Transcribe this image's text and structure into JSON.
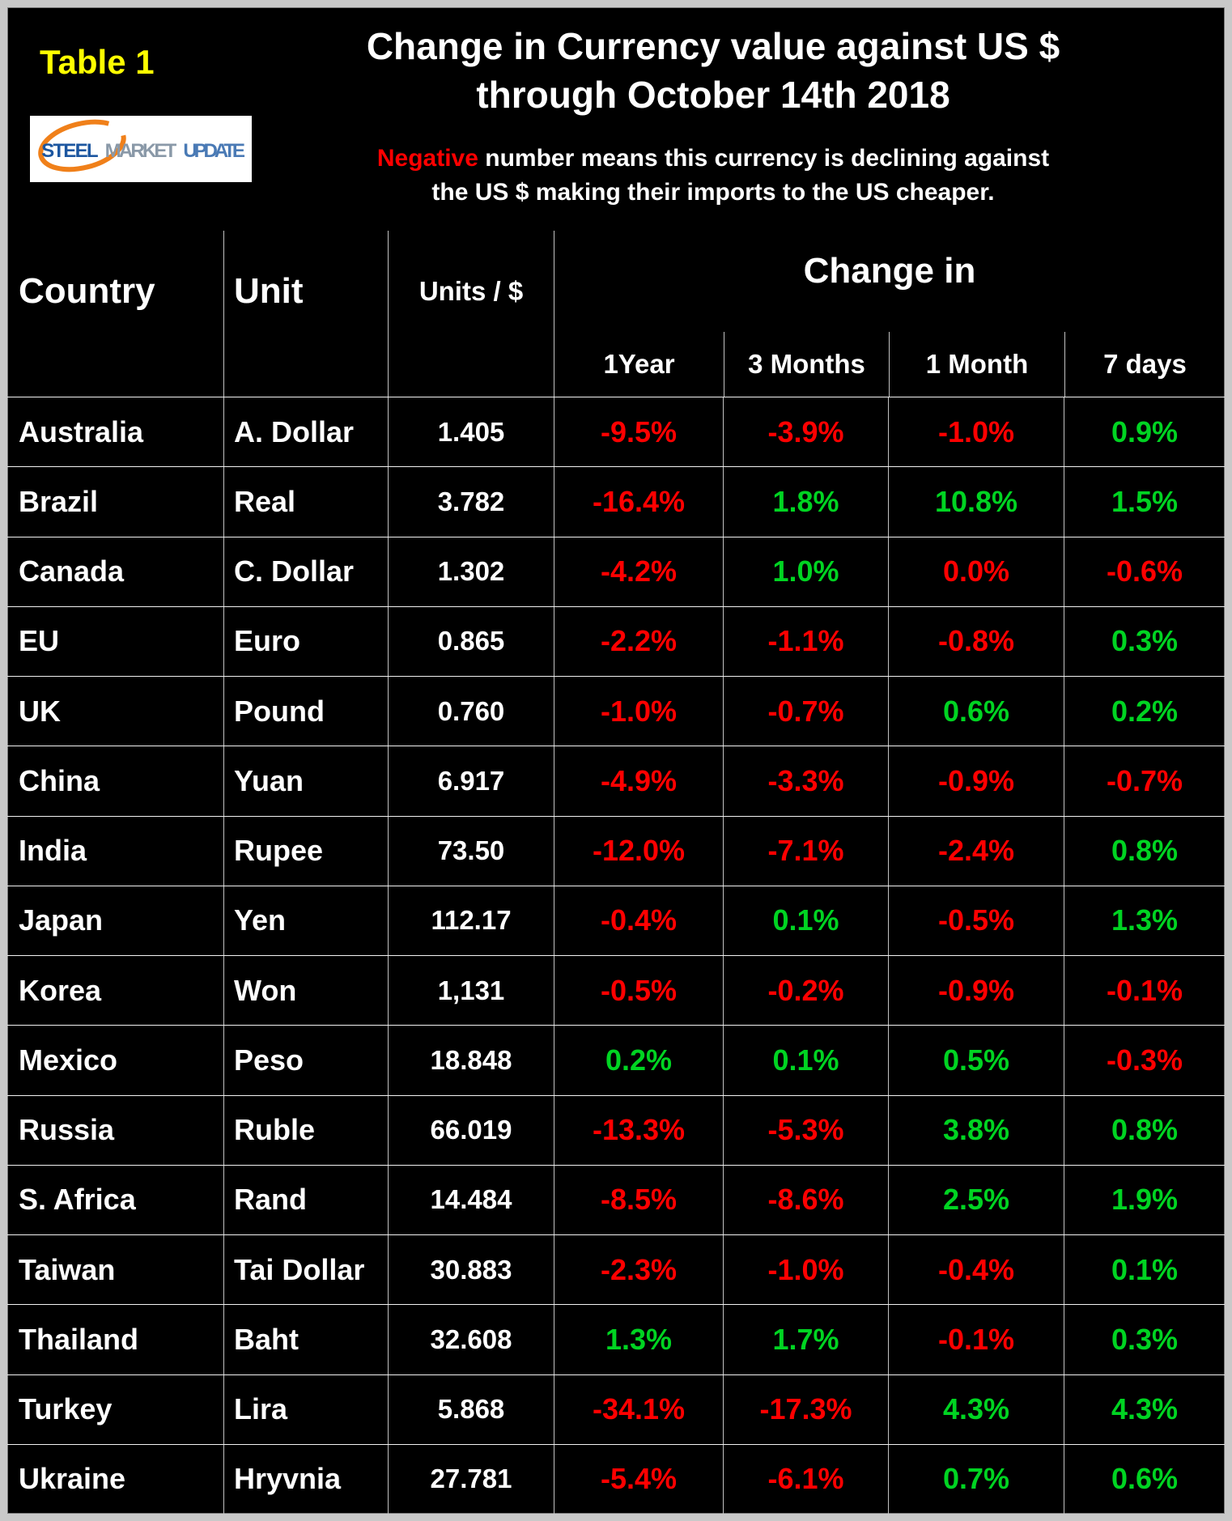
{
  "header": {
    "table_label": "Table 1",
    "title_line1": "Change in Currency value against US $",
    "title_line2": "through October 14th 2018",
    "note_highlight": "Negative",
    "note_line1_rest": " number means this currency is declining against",
    "note_line2": "the US $ making their imports to the US cheaper.",
    "logo": {
      "word1": "STEEL",
      "word2": "MARKET",
      "word3": "UPDATE"
    }
  },
  "table_headers": {
    "country": "Country",
    "unit": "Unit",
    "units_per_dollar": "Units / $",
    "change_in": "Change in",
    "periods": [
      "1Year",
      "3 Months",
      "1 Month",
      "7 days"
    ]
  },
  "colors": {
    "negative": "#ff0000",
    "positive": "#00d422",
    "accent_yellow": "#ffff00",
    "logo_orange": "#f0801a",
    "logo_blue": "#1c56a0",
    "logo_gray": "#8a99a8",
    "logo_light_blue": "#4a7ab5"
  },
  "chart_data": {
    "type": "table",
    "title": "Change in Currency value against US $ through October 14th 2018",
    "columns": [
      "Country",
      "Unit",
      "Units / $",
      "1Year",
      "3 Months",
      "1 Month",
      "7 days"
    ],
    "rows": [
      {
        "country": "Australia",
        "unit": "A. Dollar",
        "units_per_usd": "1.405",
        "changes": [
          {
            "text": "-9.5%",
            "color": "red"
          },
          {
            "text": "-3.9%",
            "color": "red"
          },
          {
            "text": "-1.0%",
            "color": "red"
          },
          {
            "text": "0.9%",
            "color": "green"
          }
        ]
      },
      {
        "country": "Brazil",
        "unit": "Real",
        "units_per_usd": "3.782",
        "changes": [
          {
            "text": "-16.4%",
            "color": "red"
          },
          {
            "text": "1.8%",
            "color": "green"
          },
          {
            "text": "10.8%",
            "color": "green"
          },
          {
            "text": "1.5%",
            "color": "green"
          }
        ]
      },
      {
        "country": "Canada",
        "unit": "C. Dollar",
        "units_per_usd": "1.302",
        "changes": [
          {
            "text": "-4.2%",
            "color": "red"
          },
          {
            "text": "1.0%",
            "color": "green"
          },
          {
            "text": "0.0%",
            "color": "red"
          },
          {
            "text": "-0.6%",
            "color": "red"
          }
        ]
      },
      {
        "country": "EU",
        "unit": "Euro",
        "units_per_usd": "0.865",
        "changes": [
          {
            "text": "-2.2%",
            "color": "red"
          },
          {
            "text": "-1.1%",
            "color": "red"
          },
          {
            "text": "-0.8%",
            "color": "red"
          },
          {
            "text": "0.3%",
            "color": "green"
          }
        ]
      },
      {
        "country": "UK",
        "unit": "Pound",
        "units_per_usd": "0.760",
        "changes": [
          {
            "text": "-1.0%",
            "color": "red"
          },
          {
            "text": "-0.7%",
            "color": "red"
          },
          {
            "text": "0.6%",
            "color": "green"
          },
          {
            "text": "0.2%",
            "color": "green"
          }
        ]
      },
      {
        "country": "China",
        "unit": "Yuan",
        "units_per_usd": "6.917",
        "changes": [
          {
            "text": "-4.9%",
            "color": "red"
          },
          {
            "text": "-3.3%",
            "color": "red"
          },
          {
            "text": "-0.9%",
            "color": "red"
          },
          {
            "text": "-0.7%",
            "color": "red"
          }
        ]
      },
      {
        "country": "India",
        "unit": "Rupee",
        "units_per_usd": "73.50",
        "changes": [
          {
            "text": "-12.0%",
            "color": "red"
          },
          {
            "text": "-7.1%",
            "color": "red"
          },
          {
            "text": "-2.4%",
            "color": "red"
          },
          {
            "text": "0.8%",
            "color": "green"
          }
        ]
      },
      {
        "country": "Japan",
        "unit": "Yen",
        "units_per_usd": "112.17",
        "changes": [
          {
            "text": "-0.4%",
            "color": "red"
          },
          {
            "text": "0.1%",
            "color": "green"
          },
          {
            "text": "-0.5%",
            "color": "red"
          },
          {
            "text": "1.3%",
            "color": "green"
          }
        ]
      },
      {
        "country": "Korea",
        "unit": "Won",
        "units_per_usd": "1,131",
        "changes": [
          {
            "text": "-0.5%",
            "color": "red"
          },
          {
            "text": "-0.2%",
            "color": "red"
          },
          {
            "text": "-0.9%",
            "color": "red"
          },
          {
            "text": "-0.1%",
            "color": "red"
          }
        ]
      },
      {
        "country": "Mexico",
        "unit": "Peso",
        "units_per_usd": "18.848",
        "changes": [
          {
            "text": "0.2%",
            "color": "green"
          },
          {
            "text": "0.1%",
            "color": "green"
          },
          {
            "text": "0.5%",
            "color": "green"
          },
          {
            "text": "-0.3%",
            "color": "red"
          }
        ]
      },
      {
        "country": "Russia",
        "unit": "Ruble",
        "units_per_usd": "66.019",
        "changes": [
          {
            "text": "-13.3%",
            "color": "red"
          },
          {
            "text": "-5.3%",
            "color": "red"
          },
          {
            "text": "3.8%",
            "color": "green"
          },
          {
            "text": "0.8%",
            "color": "green"
          }
        ]
      },
      {
        "country": "S. Africa",
        "unit": "Rand",
        "units_per_usd": "14.484",
        "changes": [
          {
            "text": "-8.5%",
            "color": "red"
          },
          {
            "text": "-8.6%",
            "color": "red"
          },
          {
            "text": "2.5%",
            "color": "green"
          },
          {
            "text": "1.9%",
            "color": "green"
          }
        ]
      },
      {
        "country": "Taiwan",
        "unit": "Tai Dollar",
        "units_per_usd": "30.883",
        "changes": [
          {
            "text": "-2.3%",
            "color": "red"
          },
          {
            "text": "-1.0%",
            "color": "red"
          },
          {
            "text": "-0.4%",
            "color": "red"
          },
          {
            "text": "0.1%",
            "color": "green"
          }
        ]
      },
      {
        "country": "Thailand",
        "unit": "Baht",
        "units_per_usd": "32.608",
        "changes": [
          {
            "text": "1.3%",
            "color": "green"
          },
          {
            "text": "1.7%",
            "color": "green"
          },
          {
            "text": "-0.1%",
            "color": "red"
          },
          {
            "text": "0.3%",
            "color": "green"
          }
        ]
      },
      {
        "country": "Turkey",
        "unit": "Lira",
        "units_per_usd": "5.868",
        "changes": [
          {
            "text": "-34.1%",
            "color": "red"
          },
          {
            "text": "-17.3%",
            "color": "red"
          },
          {
            "text": "4.3%",
            "color": "green"
          },
          {
            "text": "4.3%",
            "color": "green"
          }
        ]
      },
      {
        "country": "Ukraine",
        "unit": "Hryvnia",
        "units_per_usd": "27.781",
        "changes": [
          {
            "text": "-5.4%",
            "color": "red"
          },
          {
            "text": "-6.1%",
            "color": "red"
          },
          {
            "text": "0.7%",
            "color": "green"
          },
          {
            "text": "0.6%",
            "color": "green"
          }
        ]
      }
    ]
  }
}
